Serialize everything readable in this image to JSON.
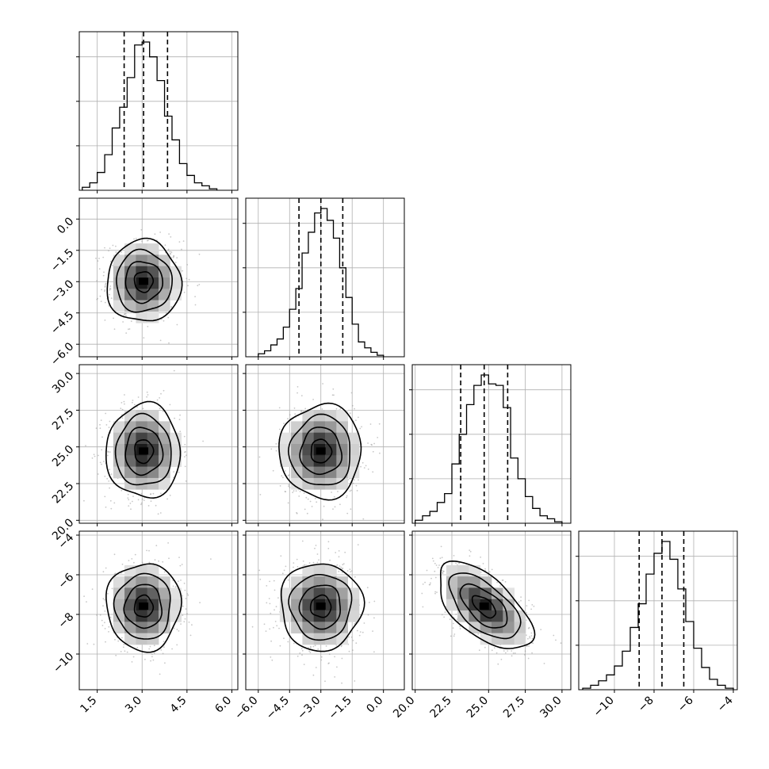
{
  "chart_data": {
    "type": "corner",
    "grid": true,
    "parameters": [
      {
        "range": [
          0.9,
          6.2
        ],
        "ticks": [
          1.5,
          3.0,
          4.5,
          6.0
        ],
        "tick_labels": [
          "1.5",
          "3.0",
          "4.5",
          "6.0"
        ],
        "quantiles": [
          2.4,
          3.05,
          3.85
        ],
        "hist": {
          "edges": [
            1.0,
            1.25,
            1.5,
            1.75,
            2.0,
            2.25,
            2.5,
            2.75,
            3.0,
            3.25,
            3.5,
            3.75,
            4.0,
            4.25,
            4.5,
            4.75,
            5.0,
            5.25,
            5.5
          ],
          "counts": [
            0.02,
            0.05,
            0.12,
            0.24,
            0.42,
            0.56,
            0.76,
            0.98,
            1.0,
            0.9,
            0.74,
            0.5,
            0.34,
            0.18,
            0.1,
            0.05,
            0.03,
            0.01
          ]
        }
      },
      {
        "range": [
          -6.6,
          1.0
        ],
        "ticks": [
          -6.0,
          -4.5,
          -3.0,
          -1.5,
          0.0
        ],
        "tick_labels": [
          "−6.0",
          "−4.5",
          "−3.0",
          "−1.5",
          "0.0"
        ],
        "quantiles": [
          -4.05,
          -3.0,
          -1.95
        ],
        "hist": {
          "edges": [
            -6.0,
            -5.7,
            -5.4,
            -5.1,
            -4.8,
            -4.5,
            -4.2,
            -3.9,
            -3.6,
            -3.3,
            -3.0,
            -2.7,
            -2.4,
            -2.1,
            -1.8,
            -1.5,
            -1.2,
            -0.9,
            -0.6,
            -0.3,
            0.0
          ],
          "counts": [
            0.02,
            0.04,
            0.08,
            0.12,
            0.2,
            0.32,
            0.46,
            0.7,
            0.84,
            0.97,
            1.0,
            0.92,
            0.8,
            0.6,
            0.4,
            0.22,
            0.1,
            0.06,
            0.03,
            0.01
          ]
        }
      },
      {
        "range": [
          19.8,
          30.6
        ],
        "ticks": [
          20.0,
          22.5,
          25.0,
          27.5,
          30.0
        ],
        "tick_labels": [
          "20.0",
          "22.5",
          "25.0",
          "27.5",
          "30.0"
        ],
        "quantiles": [
          23.1,
          24.7,
          26.3
        ],
        "hist": {
          "edges": [
            20.0,
            20.5,
            21.0,
            21.5,
            22.0,
            22.5,
            23.0,
            23.5,
            24.0,
            24.5,
            25.0,
            25.5,
            26.0,
            26.5,
            27.0,
            27.5,
            28.0,
            28.5,
            29.0,
            29.5,
            30.0
          ],
          "counts": [
            0.02,
            0.05,
            0.08,
            0.14,
            0.2,
            0.4,
            0.6,
            0.8,
            0.93,
            1.0,
            0.94,
            0.93,
            0.78,
            0.44,
            0.3,
            0.18,
            0.1,
            0.05,
            0.03,
            0.01
          ]
        }
      },
      {
        "range": [
          -11.8,
          -3.8
        ],
        "ticks": [
          -10,
          -8,
          -6,
          -4
        ],
        "tick_labels": [
          "−10",
          "−8",
          "−6",
          "−4"
        ],
        "quantiles": [
          -8.75,
          -7.6,
          -6.5
        ],
        "hist": {
          "edges": [
            -11.6,
            -11.2,
            -10.8,
            -10.4,
            -10.0,
            -9.6,
            -9.2,
            -8.8,
            -8.4,
            -8.0,
            -7.6,
            -7.2,
            -6.8,
            -6.4,
            -6.0,
            -5.6,
            -5.2,
            -4.8,
            -4.4,
            -4.0
          ],
          "counts": [
            0.01,
            0.03,
            0.06,
            0.1,
            0.16,
            0.26,
            0.42,
            0.58,
            0.78,
            0.92,
            1.0,
            0.88,
            0.68,
            0.46,
            0.28,
            0.15,
            0.07,
            0.03,
            0.01
          ]
        }
      }
    ],
    "pairs": [
      {
        "x": 0,
        "y": 1,
        "center": [
          3.05,
          -3.0
        ],
        "sigma": [
          0.62,
          0.98
        ],
        "rho": 0.0
      },
      {
        "x": 0,
        "y": 2,
        "center": [
          3.05,
          24.7
        ],
        "sigma": [
          0.62,
          1.6
        ],
        "rho": 0.0
      },
      {
        "x": 1,
        "y": 2,
        "center": [
          -3.0,
          24.7
        ],
        "sigma": [
          0.98,
          1.6
        ],
        "rho": 0.0
      },
      {
        "x": 0,
        "y": 3,
        "center": [
          3.05,
          -7.6
        ],
        "sigma": [
          0.62,
          1.1
        ],
        "rho": 0.0
      },
      {
        "x": 1,
        "y": 3,
        "center": [
          -3.0,
          -7.6
        ],
        "sigma": [
          0.98,
          1.1
        ],
        "rho": 0.0
      },
      {
        "x": 2,
        "y": 3,
        "center": [
          24.7,
          -7.6
        ],
        "sigma": [
          1.6,
          1.1
        ],
        "rho": -0.6
      }
    ],
    "contour_levels": [
      0.5,
      1.0,
      1.5,
      2.0
    ]
  },
  "colors": {
    "line": "#000000",
    "grid": "#b0b0b0",
    "scatter": "#9a9a9a",
    "density_dark": "#000000"
  }
}
